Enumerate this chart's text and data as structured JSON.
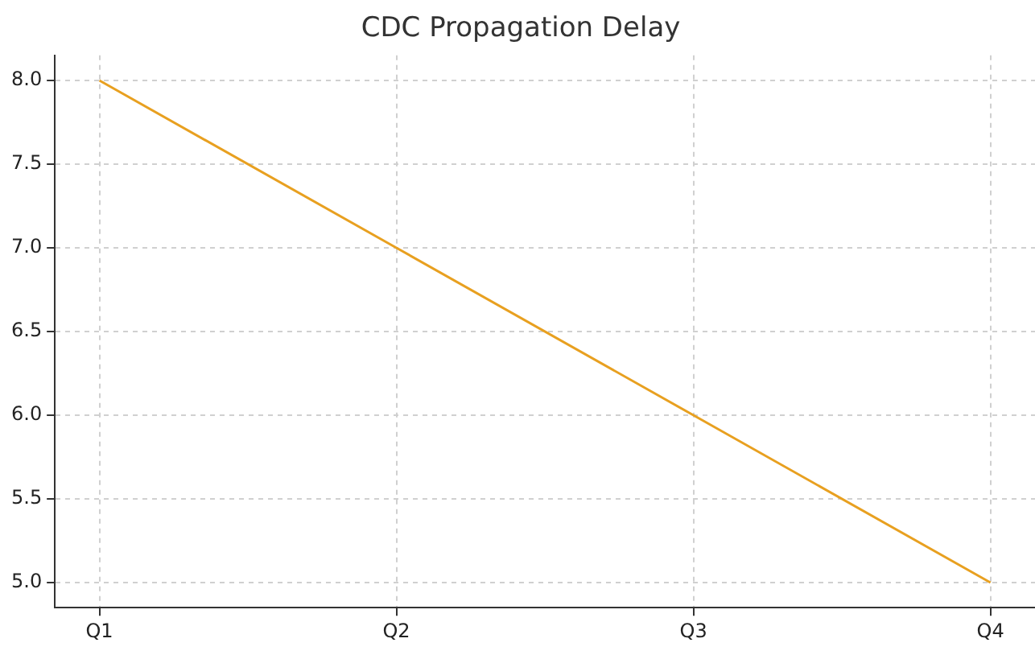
{
  "chart_data": {
    "type": "line",
    "title": "CDC Propagation Delay",
    "categories": [
      "Q1",
      "Q2",
      "Q3",
      "Q4"
    ],
    "series": [
      {
        "color": "#e8a020",
        "values": [
          8.0,
          7.0,
          6.0,
          5.0
        ]
      }
    ],
    "ylim": [
      4.85,
      8.15
    ],
    "yticks": [
      {
        "value": 5.0,
        "label": "5.0"
      },
      {
        "value": 5.5,
        "label": "5.5"
      },
      {
        "value": 6.0,
        "label": "6.0"
      },
      {
        "value": 6.5,
        "label": "6.5"
      },
      {
        "value": 7.0,
        "label": "7.0"
      },
      {
        "value": 7.5,
        "label": "7.5"
      },
      {
        "value": 8.0,
        "label": "8.0"
      }
    ],
    "grid": true,
    "legend": false,
    "marker": "none",
    "line_style": "solid"
  }
}
